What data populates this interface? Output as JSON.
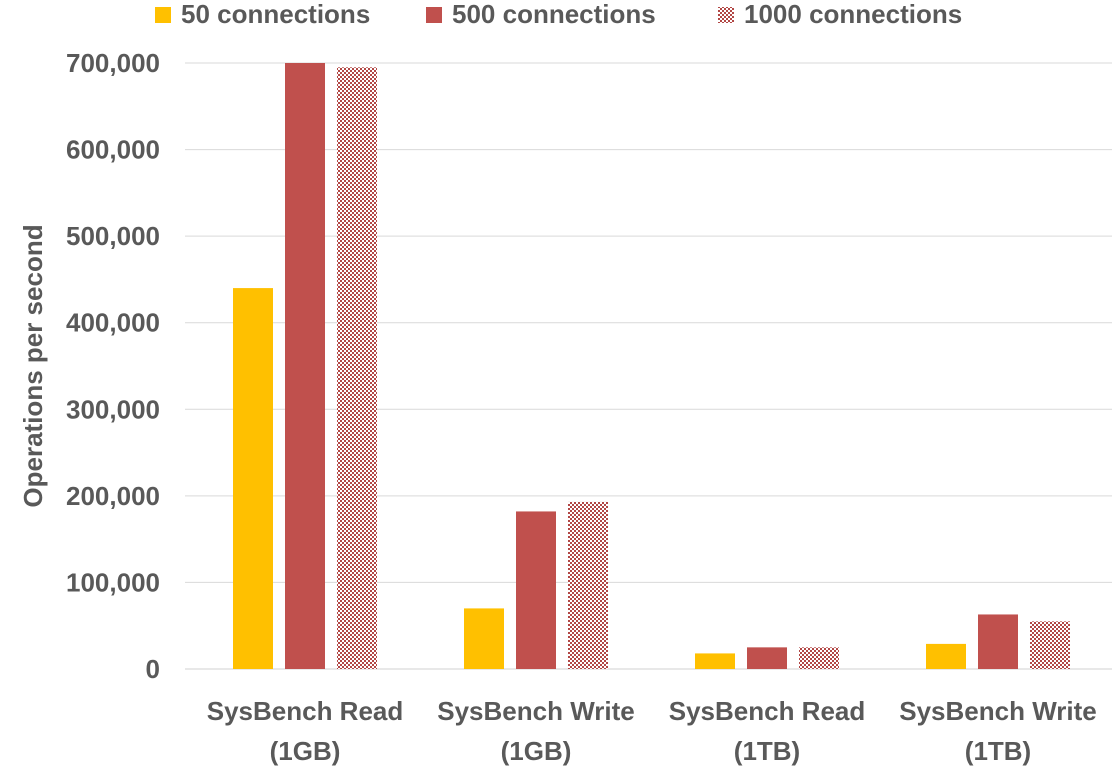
{
  "chart_data": {
    "type": "bar",
    "title": "",
    "xlabel": "",
    "ylabel": "Operations per second",
    "categories": [
      [
        "SysBench Read",
        "(1GB)"
      ],
      [
        "SysBench Write",
        "(1GB)"
      ],
      [
        "SysBench Read",
        "(1TB)"
      ],
      [
        "SysBench Write",
        "(1TB)"
      ]
    ],
    "series": [
      {
        "name": "50 connections",
        "color": "#FFC000",
        "pattern": "solid",
        "values": [
          440000,
          70000,
          18000,
          29000
        ]
      },
      {
        "name": "500 connections",
        "color": "#C0504D",
        "pattern": "solid",
        "values": [
          700000,
          182000,
          25000,
          63000
        ]
      },
      {
        "name": "1000 connections",
        "color": "#C0504D",
        "pattern": "checker",
        "values": [
          695000,
          193000,
          25000,
          55000
        ]
      }
    ],
    "ylim": [
      0,
      700000
    ],
    "yticks": [
      0,
      100000,
      200000,
      300000,
      400000,
      500000,
      600000,
      700000
    ],
    "grid": true,
    "legend_position": "top"
  }
}
